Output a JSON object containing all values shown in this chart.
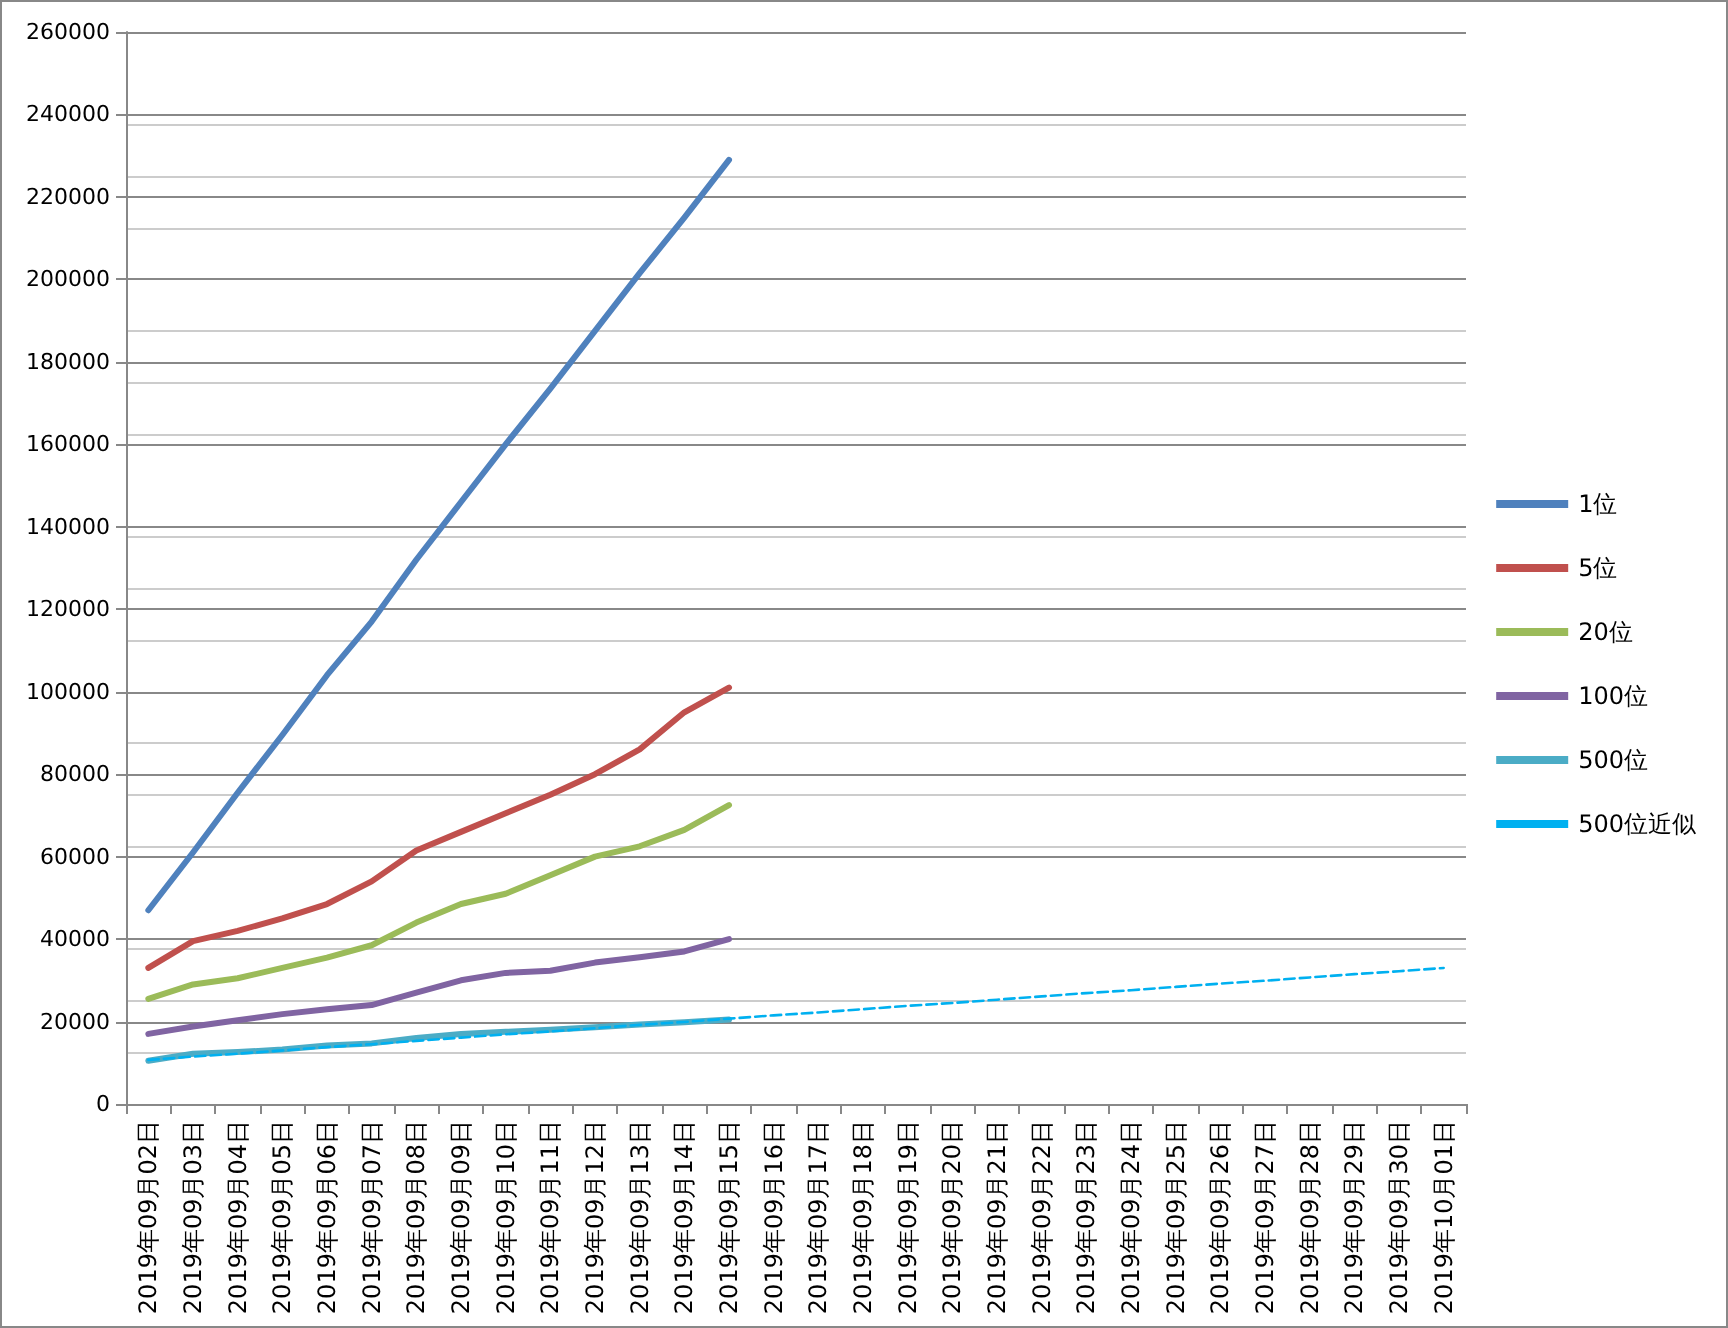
{
  "chart_data": {
    "type": "line",
    "categories": [
      "2019年09月02日",
      "2019年09月03日",
      "2019年09月04日",
      "2019年09月05日",
      "2019年09月06日",
      "2019年09月07日",
      "2019年09月08日",
      "2019年09月09日",
      "2019年09月10日",
      "2019年09月11日",
      "2019年09月12日",
      "2019年09月13日",
      "2019年09月14日",
      "2019年09月15日",
      "2019年09月16日",
      "2019年09月17日",
      "2019年09月18日",
      "2019年09月19日",
      "2019年09月20日",
      "2019年09月21日",
      "2019年09月22日",
      "2019年09月23日",
      "2019年09月24日",
      "2019年09月25日",
      "2019年09月26日",
      "2019年09月27日",
      "2019年09月28日",
      "2019年09月29日",
      "2019年09月30日",
      "2019年10月01日"
    ],
    "series": [
      {
        "name": "1位",
        "color": "#4f81bd",
        "values": [
          47000,
          61000,
          75500,
          89500,
          104000,
          117000,
          132000,
          146000,
          160000,
          173500,
          187500,
          201500,
          215000,
          229000,
          null,
          null,
          null,
          null,
          null,
          null,
          null,
          null,
          null,
          null,
          null,
          null,
          null,
          null,
          null,
          null
        ]
      },
      {
        "name": "5位",
        "color": "#c0504d",
        "values": [
          33000,
          39500,
          42000,
          45000,
          48500,
          54000,
          61500,
          66000,
          70500,
          75000,
          80000,
          86000,
          95000,
          101000,
          null,
          null,
          null,
          null,
          null,
          null,
          null,
          null,
          null,
          null,
          null,
          null,
          null,
          null,
          null,
          null
        ]
      },
      {
        "name": "20位",
        "color": "#9bbb59",
        "values": [
          25500,
          29000,
          30500,
          33000,
          35500,
          38500,
          44000,
          48500,
          51000,
          55500,
          60000,
          62500,
          66500,
          72500,
          null,
          null,
          null,
          null,
          null,
          null,
          null,
          null,
          null,
          null,
          null,
          null,
          null,
          null,
          null,
          null
        ]
      },
      {
        "name": "100位",
        "color": "#8064a2",
        "values": [
          17000,
          18800,
          20300,
          21800,
          23000,
          24000,
          27000,
          30000,
          31800,
          32300,
          34300,
          35600,
          37000,
          40000,
          null,
          null,
          null,
          null,
          null,
          null,
          null,
          null,
          null,
          null,
          null,
          null,
          null,
          null,
          null,
          null
        ]
      },
      {
        "name": "500位",
        "color": "#4bacc6",
        "values": [
          10500,
          12200,
          12600,
          13200,
          14200,
          14700,
          16000,
          17000,
          17500,
          18000,
          18600,
          19300,
          19800,
          20500,
          null,
          null,
          null,
          null,
          null,
          null,
          null,
          null,
          null,
          null,
          null,
          null,
          null,
          null,
          null,
          null
        ]
      },
      {
        "name": "500位近似",
        "color": "#00b0f0",
        "line_style": "dashed",
        "values": [
          10700,
          11500,
          12200,
          13000,
          13800,
          14500,
          15300,
          16100,
          16900,
          17600,
          18400,
          19200,
          19900,
          20700,
          21500,
          22200,
          23000,
          23800,
          24500,
          25300,
          26100,
          26900,
          27600,
          28400,
          29200,
          29900,
          30700,
          31500,
          32200,
          33000
        ]
      }
    ],
    "ylim": [
      0,
      260000
    ],
    "yticks": [
      0,
      20000,
      40000,
      60000,
      80000,
      100000,
      120000,
      140000,
      160000,
      180000,
      200000,
      220000,
      240000,
      260000
    ],
    "grid": "y",
    "legend": "right",
    "marker": "none",
    "line_style": "solid"
  }
}
